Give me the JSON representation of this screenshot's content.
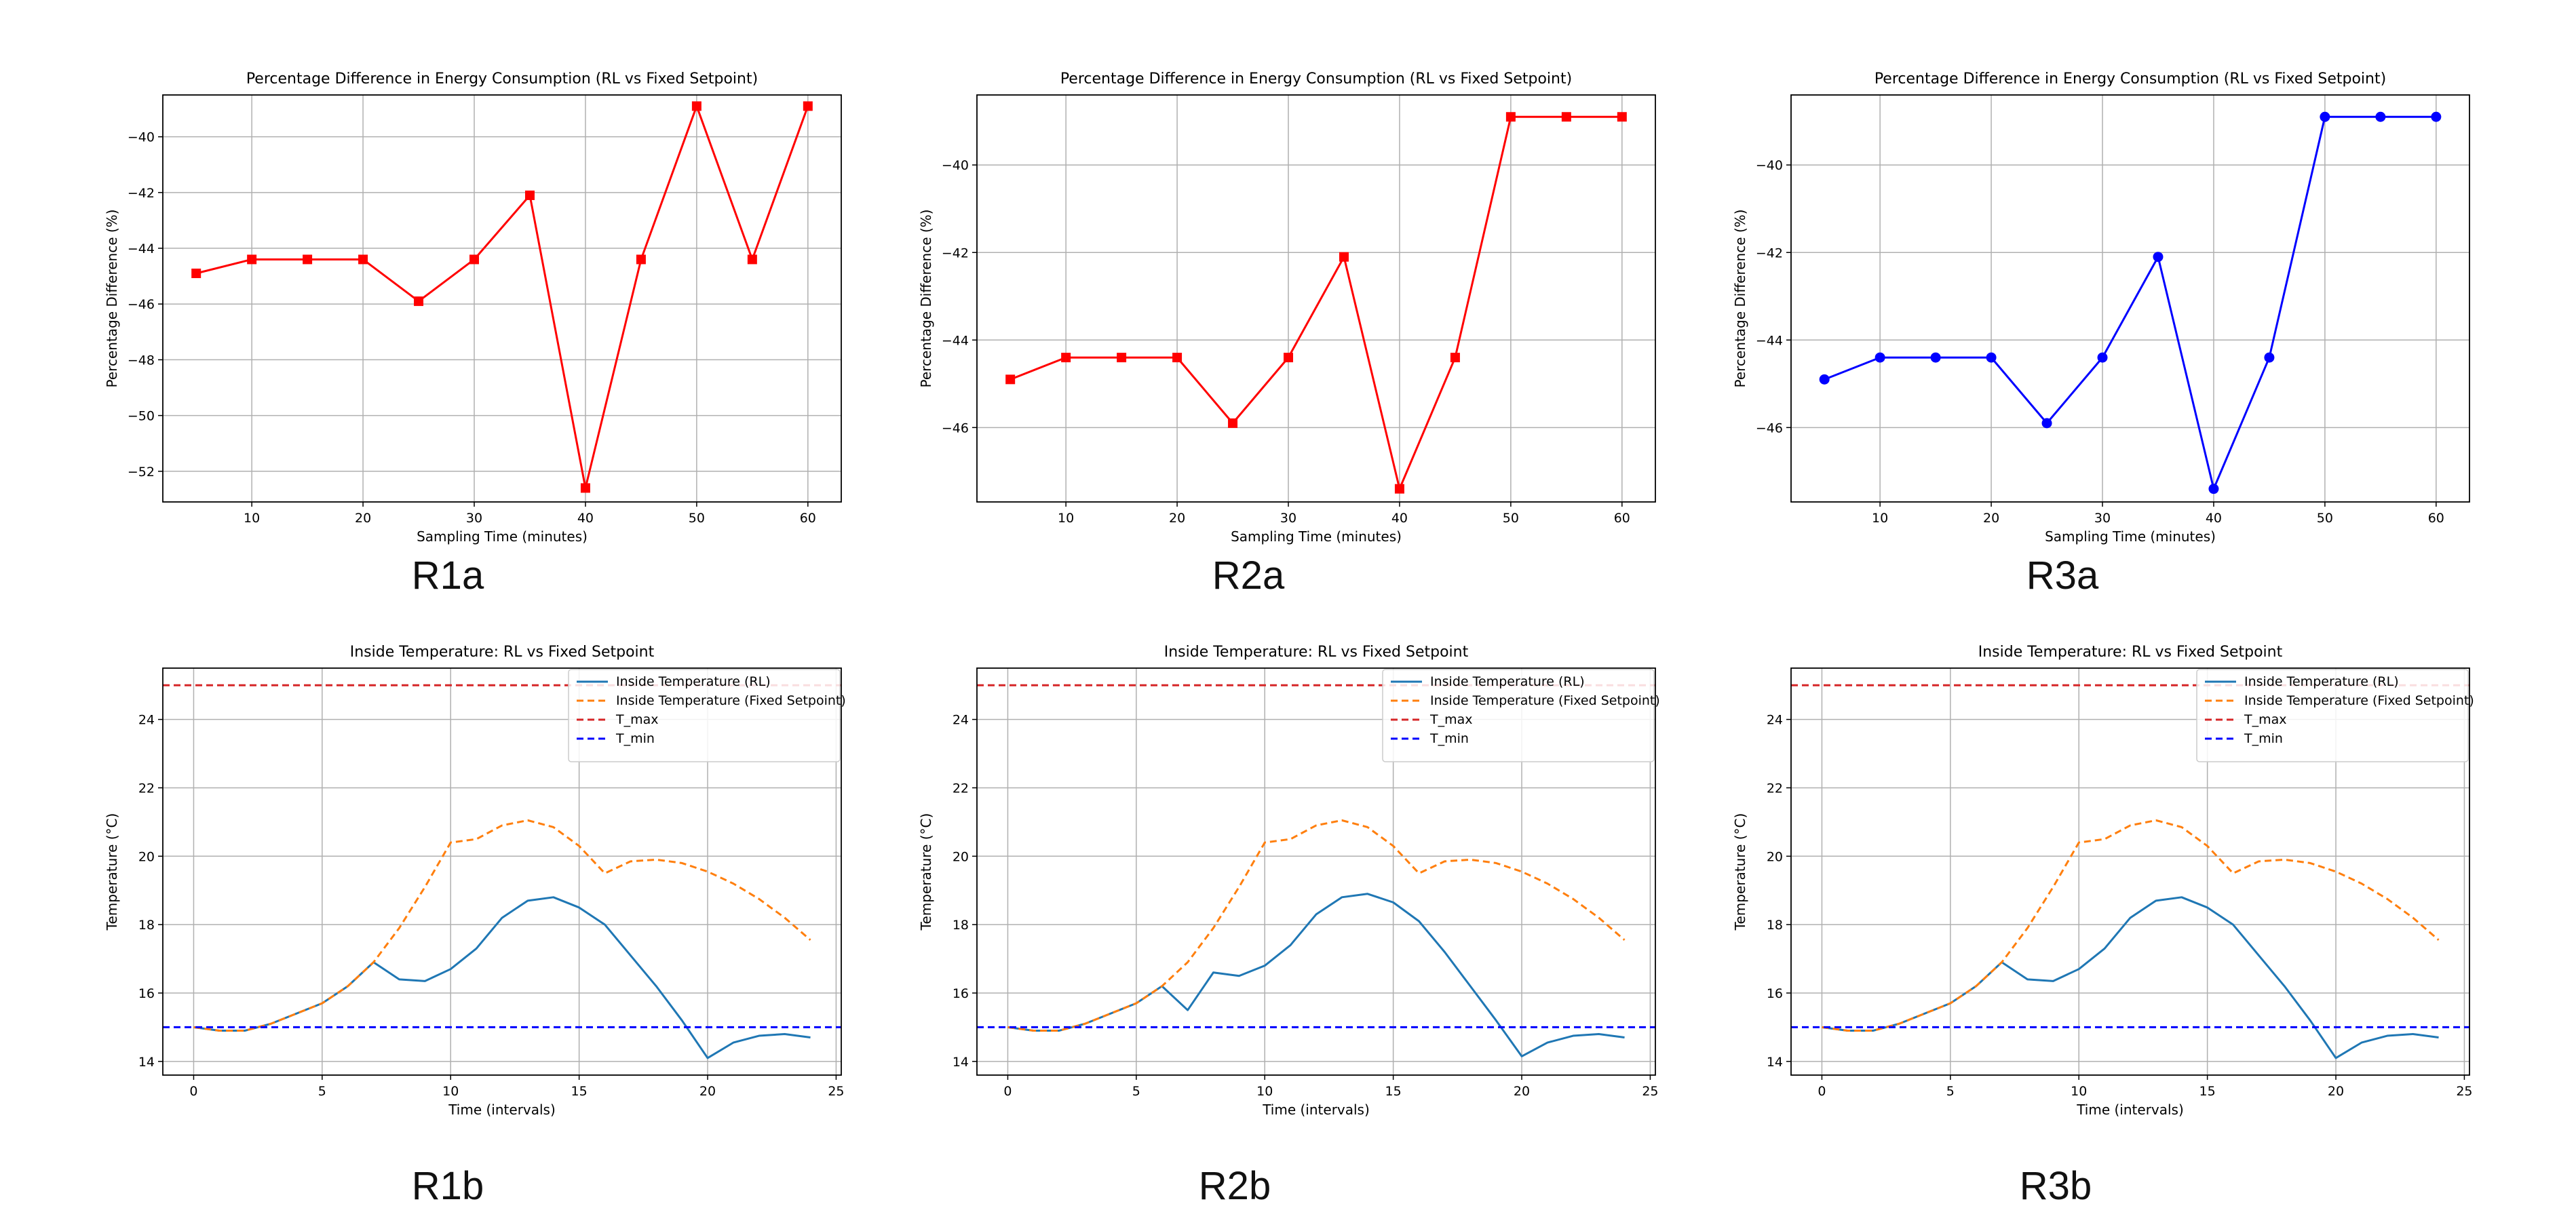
{
  "colors": {
    "red": "#ff0000",
    "blue": "#0000ff",
    "rl_blue": "#1f77b4",
    "fixed_orange": "#ff7f0e",
    "tmax_red": "#d62728",
    "tmin_blue": "#0000ff"
  },
  "chart_data": [
    {
      "type": "line",
      "title": "Percentage Difference in Energy Consumption (RL vs Fixed Setpoint)",
      "xlabel": "Sampling Time (minutes)",
      "ylabel": "Percentage Difference (%)",
      "caption": "R1a",
      "marker": "square",
      "color": "#ff0000",
      "grid": true,
      "xlim": [
        2,
        63
      ],
      "ylim": [
        -53.1,
        -38.5
      ],
      "xticks": [
        10,
        20,
        30,
        40,
        50,
        60
      ],
      "yticks": [
        -52,
        -50,
        -48,
        -46,
        -44,
        -42,
        -40
      ],
      "x": [
        5,
        10,
        15,
        20,
        25,
        30,
        35,
        40,
        45,
        50,
        55,
        60
      ],
      "series": [
        {
          "values": [
            -44.9,
            -44.4,
            -44.4,
            -44.4,
            -45.9,
            -44.4,
            -42.1,
            -52.6,
            -44.4,
            -38.9,
            -44.4,
            -38.9
          ]
        }
      ]
    },
    {
      "type": "line",
      "title": "Percentage Difference in Energy Consumption (RL vs Fixed Setpoint)",
      "xlabel": "Sampling Time (minutes)",
      "ylabel": "Percentage Difference (%)",
      "caption": "R2a",
      "marker": "square",
      "color": "#ff0000",
      "grid": true,
      "xlim": [
        2,
        63
      ],
      "ylim": [
        -47.7,
        -38.4
      ],
      "xticks": [
        10,
        20,
        30,
        40,
        50,
        60
      ],
      "yticks": [
        -46,
        -44,
        -42,
        -40
      ],
      "x": [
        5,
        10,
        15,
        20,
        25,
        30,
        35,
        40,
        45,
        50,
        55,
        60
      ],
      "series": [
        {
          "values": [
            -44.9,
            -44.4,
            -44.4,
            -44.4,
            -45.9,
            -44.4,
            -42.1,
            -47.4,
            -44.4,
            -38.9,
            -38.9,
            -38.9
          ]
        }
      ]
    },
    {
      "type": "line",
      "title": "Percentage Difference in Energy Consumption (RL vs Fixed Setpoint)",
      "xlabel": "Sampling Time (minutes)",
      "ylabel": "Percentage Difference (%)",
      "caption": "R3a",
      "marker": "circle",
      "color": "#0000ff",
      "grid": true,
      "xlim": [
        2,
        63
      ],
      "ylim": [
        -47.7,
        -38.4
      ],
      "xticks": [
        10,
        20,
        30,
        40,
        50,
        60
      ],
      "yticks": [
        -46,
        -44,
        -42,
        -40
      ],
      "x": [
        5,
        10,
        15,
        20,
        25,
        30,
        35,
        40,
        45,
        50,
        55,
        60
      ],
      "series": [
        {
          "values": [
            -44.9,
            -44.4,
            -44.4,
            -44.4,
            -45.9,
            -44.4,
            -42.1,
            -47.4,
            -44.4,
            -38.9,
            -38.9,
            -38.9
          ]
        }
      ]
    },
    {
      "type": "line",
      "title": "Inside Temperature: RL vs Fixed Setpoint",
      "xlabel": "Time (intervals)",
      "ylabel": "Temperature (°C)",
      "caption": "R1b",
      "grid": true,
      "legend": "top-right",
      "xlim": [
        -1.2,
        25.2
      ],
      "ylim": [
        13.6,
        25.5
      ],
      "xticks": [
        0,
        5,
        10,
        15,
        20,
        25
      ],
      "yticks": [
        14,
        16,
        18,
        20,
        22,
        24
      ],
      "x": [
        0,
        1,
        2,
        3,
        4,
        5,
        6,
        7,
        8,
        9,
        10,
        11,
        12,
        13,
        14,
        15,
        16,
        17,
        18,
        19,
        20,
        21,
        22,
        23,
        24
      ],
      "series": [
        {
          "name": "Inside Temperature (RL)",
          "color": "#1f77b4",
          "dash": "solid",
          "values": [
            15.0,
            14.9,
            14.9,
            15.1,
            15.4,
            15.7,
            16.2,
            16.9,
            16.4,
            16.35,
            16.7,
            17.3,
            18.2,
            18.7,
            18.8,
            18.5,
            18.0,
            17.1,
            16.2,
            15.2,
            14.1,
            14.55,
            14.75,
            14.8,
            14.7
          ]
        },
        {
          "name": "Inside Temperature (Fixed Setpoint)",
          "color": "#ff7f0e",
          "dash": "dashed",
          "values": [
            15.0,
            14.9,
            14.9,
            15.1,
            15.4,
            15.7,
            16.2,
            16.9,
            17.9,
            19.1,
            20.4,
            20.5,
            20.9,
            21.05,
            20.85,
            20.3,
            19.5,
            19.85,
            19.9,
            19.8,
            19.55,
            19.2,
            18.75,
            18.2,
            17.55
          ]
        },
        {
          "name": "T_max",
          "color": "#d62728",
          "dash": "dashed",
          "constant": 25
        },
        {
          "name": "T_min",
          "color": "#0000ff",
          "dash": "dashed",
          "constant": 15
        }
      ]
    },
    {
      "type": "line",
      "title": "Inside Temperature: RL vs Fixed Setpoint",
      "xlabel": "Time (intervals)",
      "ylabel": "Temperature (°C)",
      "caption": "R2b",
      "grid": true,
      "legend": "top-right",
      "xlim": [
        -1.2,
        25.2
      ],
      "ylim": [
        13.6,
        25.5
      ],
      "xticks": [
        0,
        5,
        10,
        15,
        20,
        25
      ],
      "yticks": [
        14,
        16,
        18,
        20,
        22,
        24
      ],
      "x": [
        0,
        1,
        2,
        3,
        4,
        5,
        6,
        7,
        8,
        9,
        10,
        11,
        12,
        13,
        14,
        15,
        16,
        17,
        18,
        19,
        20,
        21,
        22,
        23,
        24
      ],
      "series": [
        {
          "name": "Inside Temperature (RL)",
          "color": "#1f77b4",
          "dash": "solid",
          "values": [
            15.0,
            14.9,
            14.9,
            15.1,
            15.4,
            15.7,
            16.2,
            15.5,
            16.6,
            16.5,
            16.8,
            17.4,
            18.3,
            18.8,
            18.9,
            18.65,
            18.1,
            17.2,
            16.2,
            15.2,
            14.15,
            14.55,
            14.75,
            14.8,
            14.7
          ]
        },
        {
          "name": "Inside Temperature (Fixed Setpoint)",
          "color": "#ff7f0e",
          "dash": "dashed",
          "values": [
            15.0,
            14.9,
            14.9,
            15.1,
            15.4,
            15.7,
            16.2,
            16.9,
            17.9,
            19.1,
            20.4,
            20.5,
            20.9,
            21.05,
            20.85,
            20.3,
            19.5,
            19.85,
            19.9,
            19.8,
            19.55,
            19.2,
            18.75,
            18.2,
            17.55
          ]
        },
        {
          "name": "T_max",
          "color": "#d62728",
          "dash": "dashed",
          "constant": 25
        },
        {
          "name": "T_min",
          "color": "#0000ff",
          "dash": "dashed",
          "constant": 15
        }
      ]
    },
    {
      "type": "line",
      "title": "Inside Temperature: RL vs Fixed Setpoint",
      "xlabel": "Time (intervals)",
      "ylabel": "Temperature (°C)",
      "caption": "R3b",
      "grid": true,
      "legend": "top-right",
      "xlim": [
        -1.2,
        25.2
      ],
      "ylim": [
        13.6,
        25.5
      ],
      "xticks": [
        0,
        5,
        10,
        15,
        20,
        25
      ],
      "yticks": [
        14,
        16,
        18,
        20,
        22,
        24
      ],
      "x": [
        0,
        1,
        2,
        3,
        4,
        5,
        6,
        7,
        8,
        9,
        10,
        11,
        12,
        13,
        14,
        15,
        16,
        17,
        18,
        19,
        20,
        21,
        22,
        23,
        24
      ],
      "series": [
        {
          "name": "Inside Temperature (RL)",
          "color": "#1f77b4",
          "dash": "solid",
          "values": [
            15.0,
            14.9,
            14.9,
            15.1,
            15.4,
            15.7,
            16.2,
            16.9,
            16.4,
            16.35,
            16.7,
            17.3,
            18.2,
            18.7,
            18.8,
            18.5,
            18.0,
            17.1,
            16.2,
            15.2,
            14.1,
            14.55,
            14.75,
            14.8,
            14.7
          ]
        },
        {
          "name": "Inside Temperature (Fixed Setpoint)",
          "color": "#ff7f0e",
          "dash": "dashed",
          "values": [
            15.0,
            14.9,
            14.9,
            15.1,
            15.4,
            15.7,
            16.2,
            16.9,
            17.9,
            19.1,
            20.4,
            20.5,
            20.9,
            21.05,
            20.85,
            20.3,
            19.5,
            19.85,
            19.9,
            19.8,
            19.55,
            19.2,
            18.75,
            18.2,
            17.55
          ]
        },
        {
          "name": "T_max",
          "color": "#d62728",
          "dash": "dashed",
          "constant": 25
        },
        {
          "name": "T_min",
          "color": "#0000ff",
          "dash": "dashed",
          "constant": 15
        }
      ]
    }
  ]
}
